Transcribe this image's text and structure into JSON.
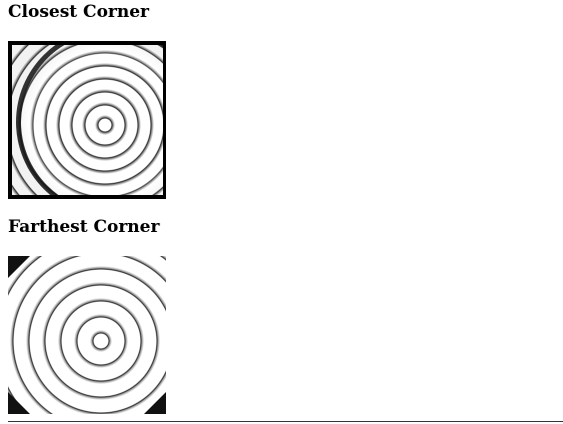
{
  "sections": [
    {
      "title": "Closest Corner"
    },
    {
      "title": "Farthest Corner"
    }
  ],
  "colors": {
    "background": "#ffffff",
    "ring": "#222222",
    "border": "#000000"
  }
}
